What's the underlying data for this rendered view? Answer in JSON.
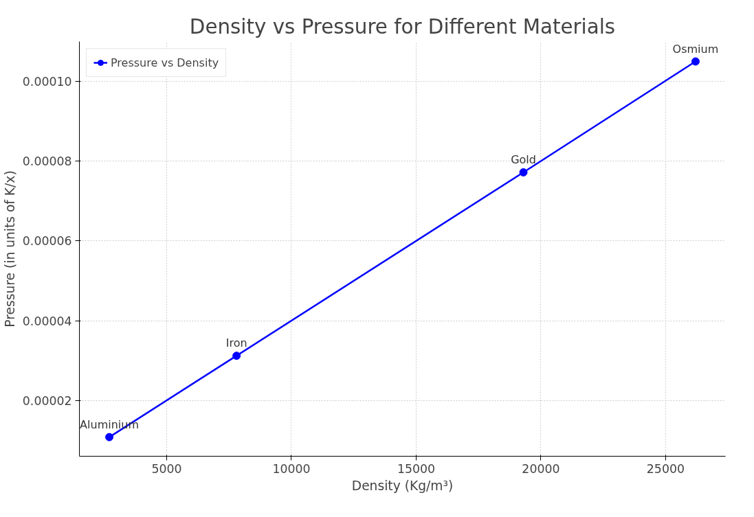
{
  "chart_data": {
    "type": "line",
    "title": "Density vs Pressure for Different Materials",
    "xlabel": "Density (Kg/m³)",
    "ylabel": "Pressure (in units of K/x)",
    "x": [
      2700,
      7800,
      19300,
      26200
    ],
    "series": [
      {
        "name": "Pressure vs Density",
        "color": "#0000ff",
        "values": [
          1.08e-05,
          3.12e-05,
          7.72e-05,
          0.000105
        ]
      }
    ],
    "annotations": [
      {
        "text": "Aluminium",
        "x": 2700,
        "y": 1.08e-05
      },
      {
        "text": "Iron",
        "x": 7800,
        "y": 3.12e-05
      },
      {
        "text": "Gold",
        "x": 19300,
        "y": 7.72e-05
      },
      {
        "text": "Osmium",
        "x": 26200,
        "y": 0.000105
      }
    ],
    "xlim": [
      1500,
      27400
    ],
    "xticks": [
      5000,
      10000,
      15000,
      20000,
      25000
    ],
    "ylim": [
      6e-06,
      0.00011
    ],
    "yticks": [
      {
        "value": 2e-05,
        "label": "0.00002"
      },
      {
        "value": 4e-05,
        "label": "0.00004"
      },
      {
        "value": 6e-05,
        "label": "0.00006"
      },
      {
        "value": 8e-05,
        "label": "0.00008"
      },
      {
        "value": 0.0001,
        "label": "0.00010"
      }
    ],
    "grid": true,
    "legend": "top left",
    "marker": "circle",
    "line_style": "solid"
  }
}
